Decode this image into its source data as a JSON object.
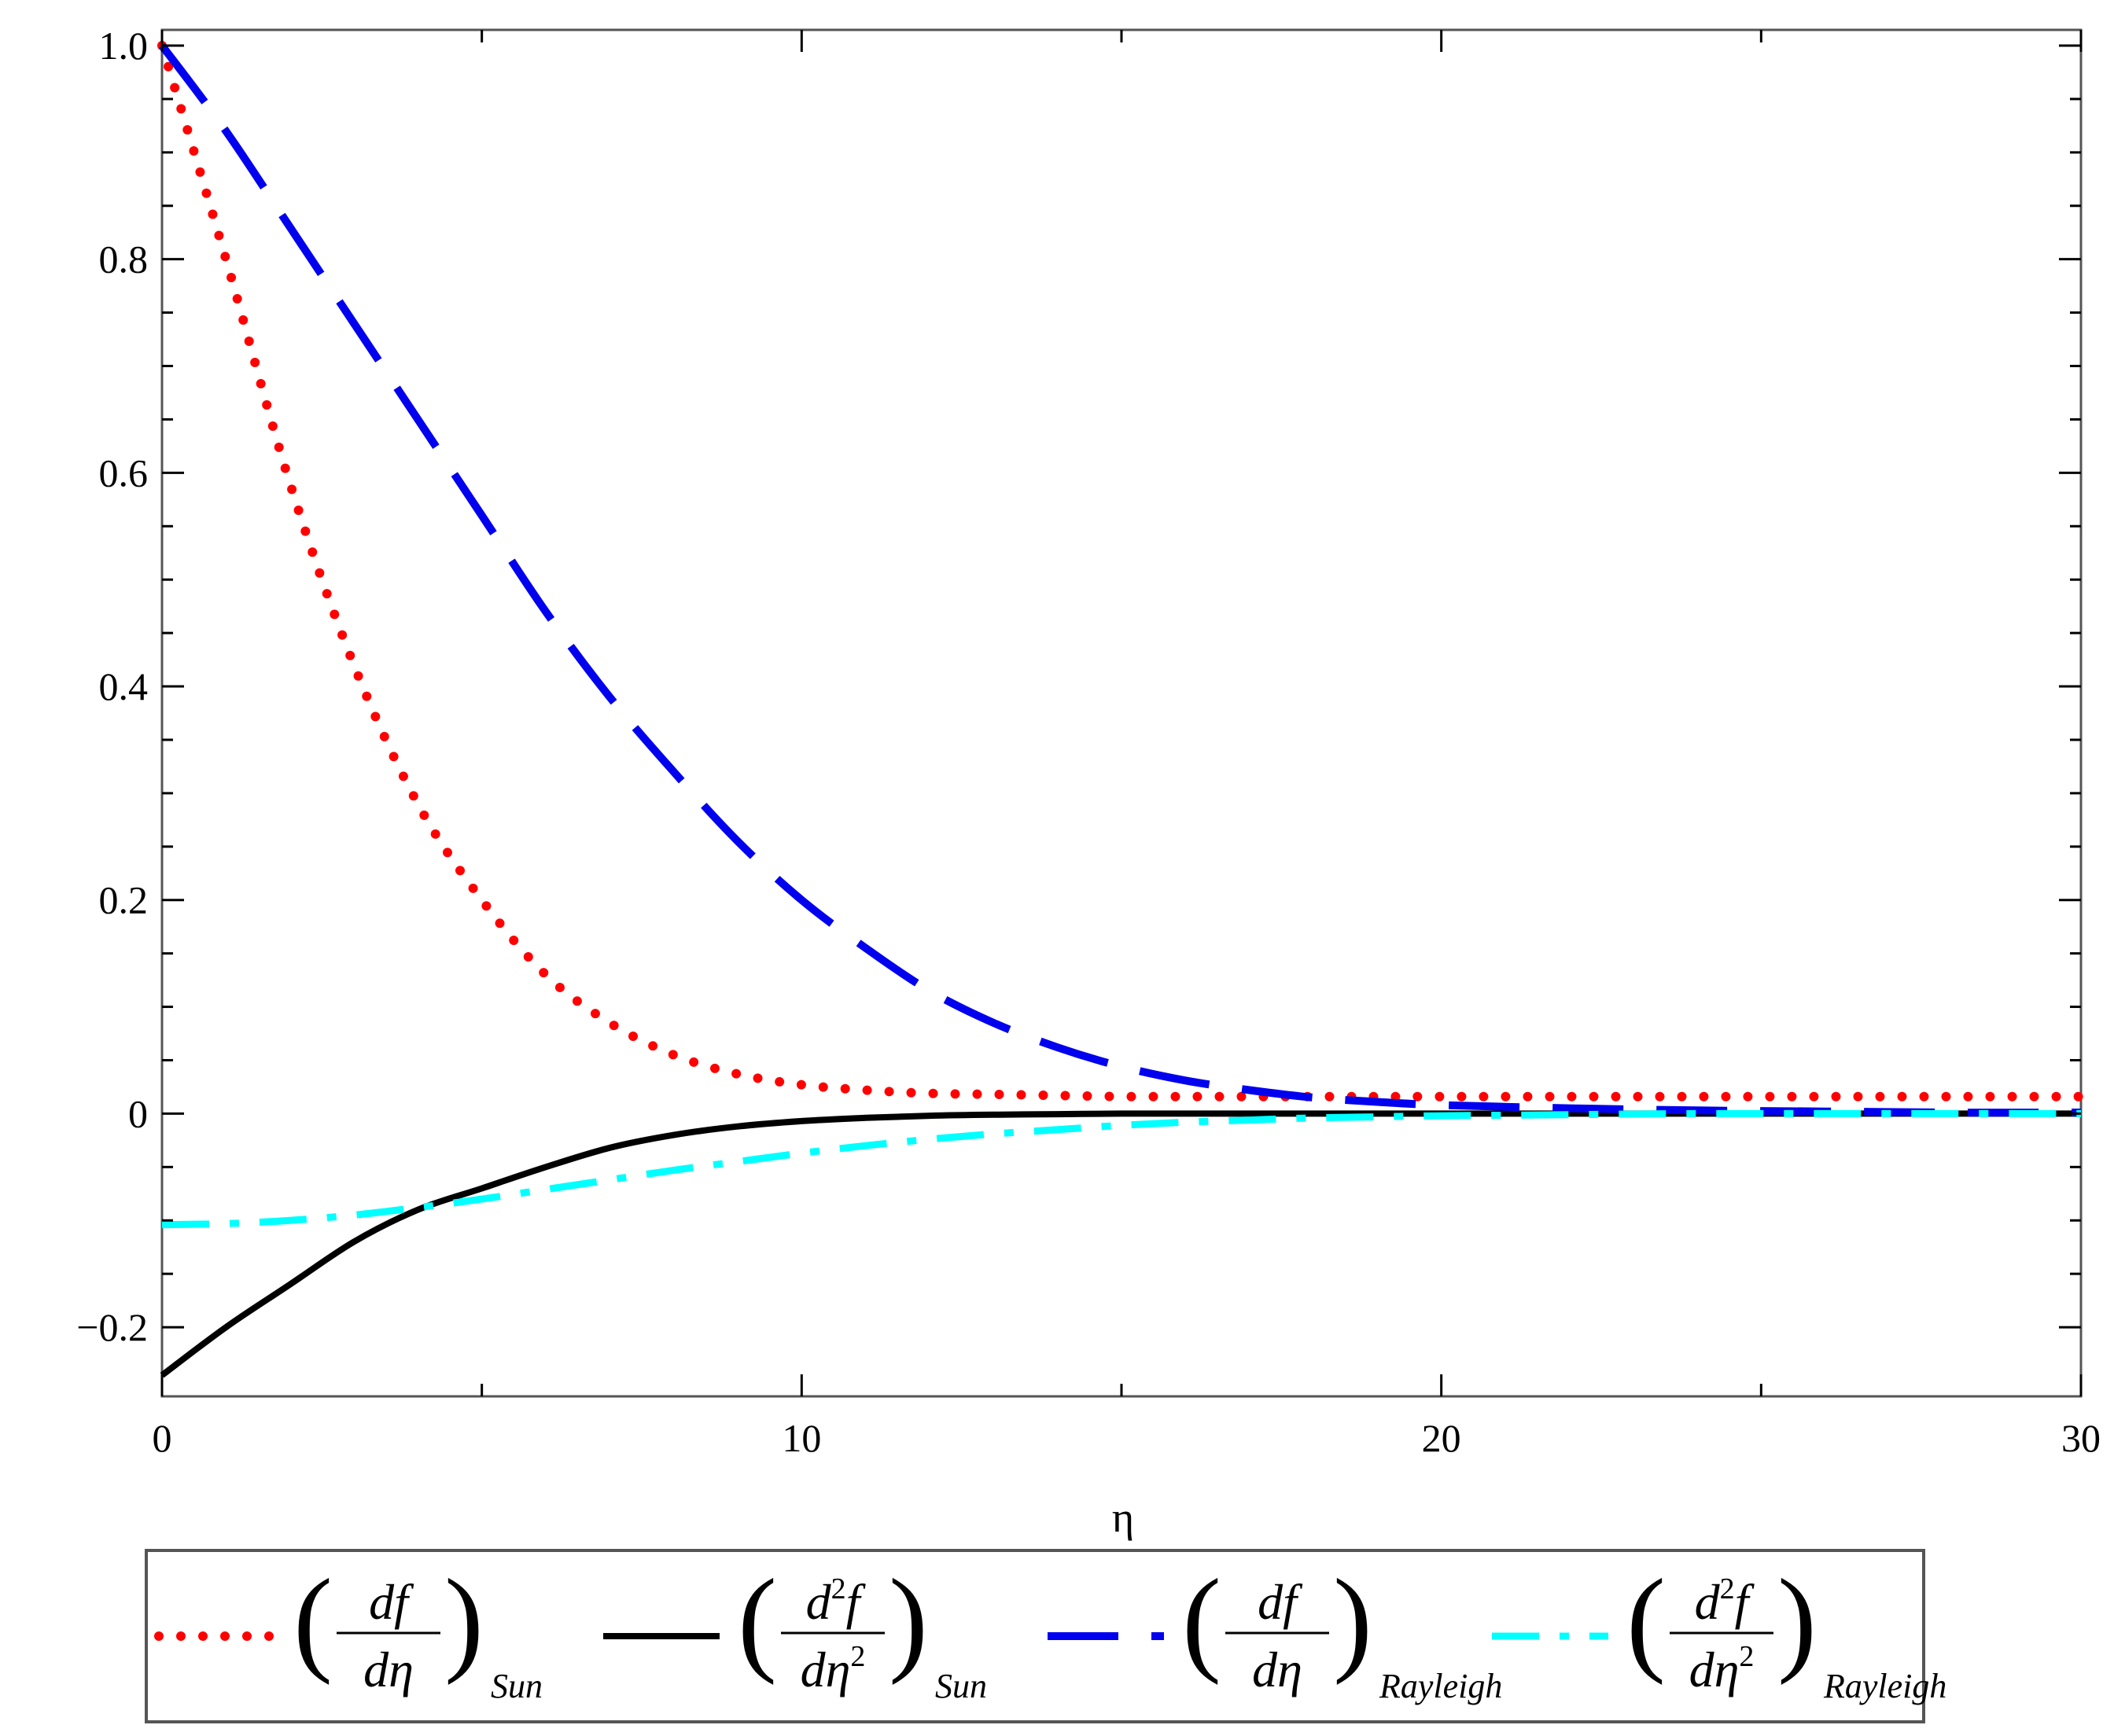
{
  "chart_data": {
    "type": "line",
    "xlabel": "η",
    "ylabel": "",
    "xlim": [
      0,
      30
    ],
    "ylim": [
      -0.25,
      1.0
    ],
    "x_ticks": [
      "0",
      "10",
      "20",
      "30"
    ],
    "y_ticks": [
      "−0.2",
      "0",
      "0.2",
      "0.4",
      "0.6",
      "0.8",
      "1.0"
    ],
    "grid": false,
    "legend_position": "bottom",
    "x": [
      0,
      1,
      2,
      3,
      4,
      5,
      6,
      7,
      8,
      9,
      10,
      11,
      12,
      13,
      14,
      15,
      16,
      17,
      18,
      19,
      20,
      22,
      24,
      26,
      28,
      30
    ],
    "series": [
      {
        "legend": {
          "num": "df",
          "num_sup": "",
          "den": "dη",
          "den_sup": "",
          "sub": "Sun"
        },
        "color": "#ff0000",
        "dash": "dotted",
        "values": [
          1.0,
          0.8,
          0.59,
          0.42,
          0.29,
          0.2,
          0.13,
          0.085,
          0.055,
          0.037,
          0.027,
          0.022,
          0.019,
          0.018,
          0.017,
          0.016,
          0.016,
          0.016,
          0.016,
          0.016,
          0.016,
          0.016,
          0.016,
          0.016,
          0.016,
          0.016
        ]
      },
      {
        "legend": {
          "num": "d",
          "num_sup": "2",
          "num_tail": "f",
          "den": "dη",
          "den_sup": "2",
          "sub": "Sun"
        },
        "color": "#000000",
        "dash": "solid",
        "values": [
          -0.245,
          -0.2,
          -0.16,
          -0.12,
          -0.09,
          -0.07,
          -0.05,
          -0.032,
          -0.02,
          -0.012,
          -0.007,
          -0.004,
          -0.002,
          -0.001,
          -0.0005,
          0,
          0,
          0,
          0,
          0,
          0,
          0,
          0,
          0,
          0,
          0
        ]
      },
      {
        "legend": {
          "num": "df",
          "num_sup": "",
          "den": "dη",
          "den_sup": "",
          "sub": "Rayleigh"
        },
        "color": "#0000ee",
        "dash": "longdash",
        "values": [
          1.0,
          0.92,
          0.83,
          0.74,
          0.65,
          0.56,
          0.47,
          0.39,
          0.32,
          0.255,
          0.2,
          0.155,
          0.115,
          0.085,
          0.062,
          0.044,
          0.031,
          0.022,
          0.015,
          0.011,
          0.008,
          0.005,
          0.003,
          0.002,
          0.001,
          0.001
        ]
      },
      {
        "legend": {
          "num": "d",
          "num_sup": "2",
          "num_tail": "f",
          "den": "dη",
          "den_sup": "2",
          "sub": "Rayleigh"
        },
        "color": "#00ffff",
        "dash": "dashdot",
        "values": [
          -0.104,
          -0.103,
          -0.1,
          -0.095,
          -0.088,
          -0.08,
          -0.071,
          -0.062,
          -0.053,
          -0.045,
          -0.037,
          -0.03,
          -0.024,
          -0.019,
          -0.015,
          -0.011,
          -0.008,
          -0.006,
          -0.004,
          -0.003,
          -0.002,
          -0.001,
          0,
          0,
          0,
          0
        ]
      }
    ]
  }
}
